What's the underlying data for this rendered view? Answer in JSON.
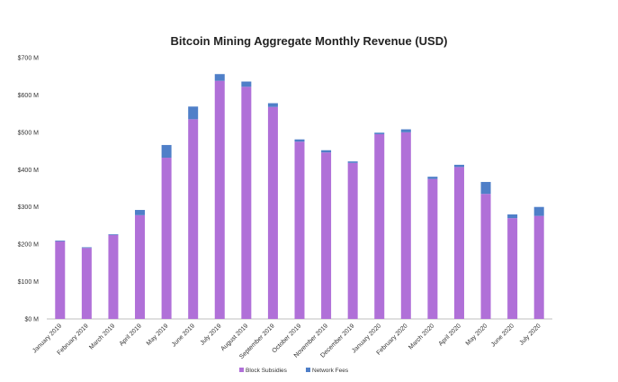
{
  "chart_data": {
    "type": "bar",
    "stacked": true,
    "title": "Bitcoin Mining Aggregate Monthly Revenue (USD)",
    "xlabel": "",
    "ylabel": "",
    "ylim": [
      0,
      700
    ],
    "y_ticks": [
      "$0 M",
      "$100 M",
      "$200 M",
      "$300 M",
      "$400 M",
      "$500 M",
      "$600 M",
      "$700 M"
    ],
    "grid": false,
    "legend_position": "bottom",
    "categories": [
      "January 2019",
      "February 2019",
      "March 2019",
      "April 2019",
      "May 2019",
      "June 2019",
      "July 2019",
      "August 2019",
      "September 2019",
      "October 2019",
      "November 2019",
      "December 2019",
      "January 2020",
      "February 2020",
      "March 2020",
      "April 2020",
      "May 2020",
      "June 2020",
      "July 2020"
    ],
    "series": [
      {
        "name": "Block Subsidies",
        "color": "#b070d8",
        "values": [
          208,
          190,
          225,
          278,
          432,
          535,
          638,
          622,
          568,
          475,
          446,
          418,
          495,
          500,
          375,
          407,
          335,
          270,
          276
        ]
      },
      {
        "name": "Network Fees",
        "color": "#4f7fc8",
        "values": [
          2,
          2,
          2,
          14,
          34,
          34,
          18,
          14,
          10,
          6,
          6,
          4,
          4,
          8,
          6,
          6,
          32,
          10,
          24
        ]
      }
    ]
  }
}
